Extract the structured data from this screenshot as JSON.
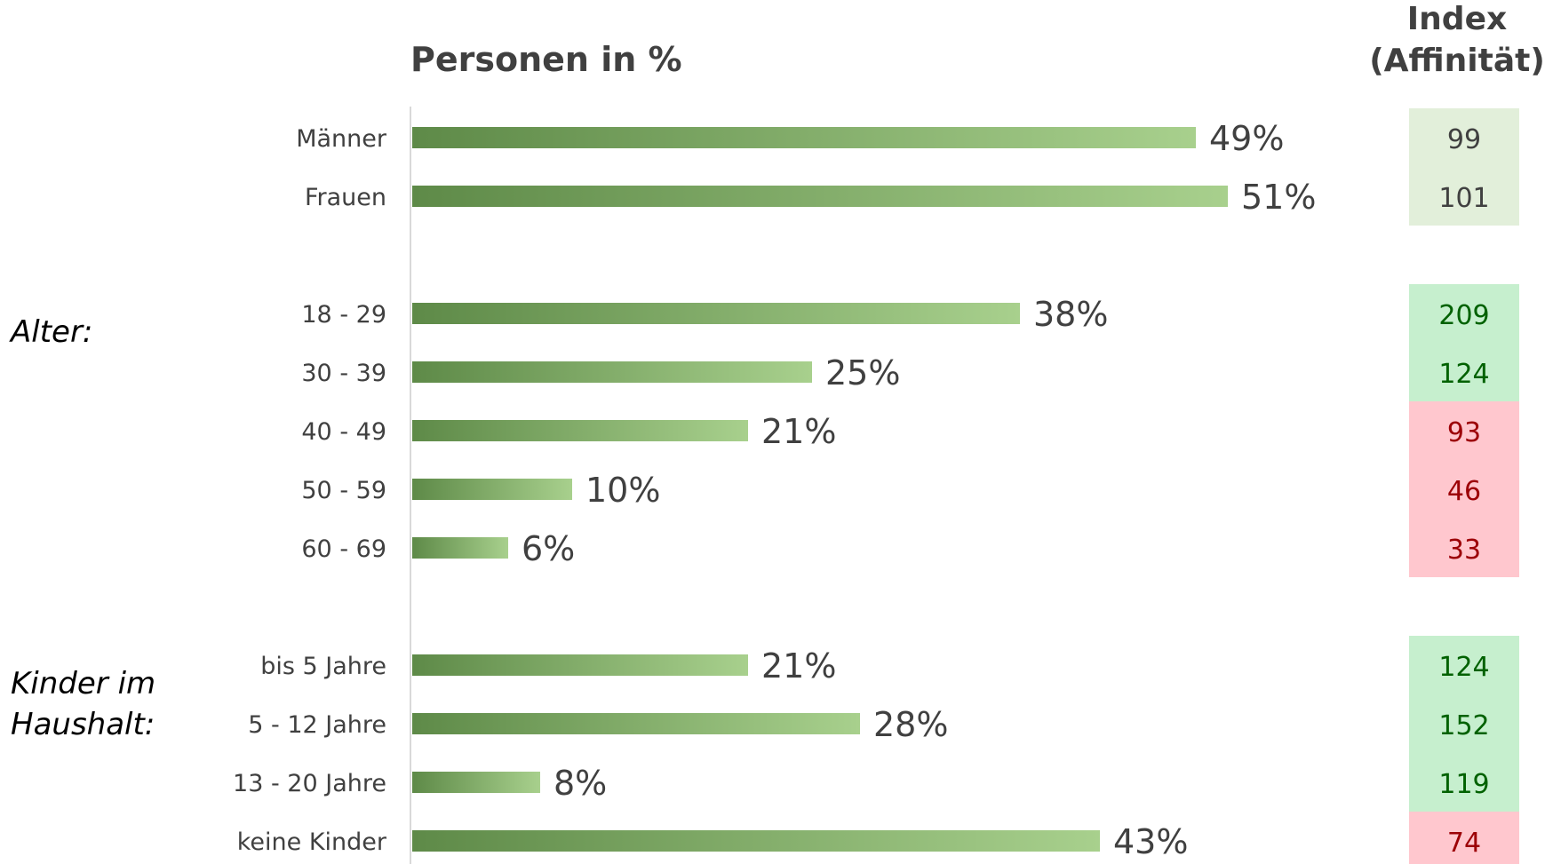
{
  "chart_data": {
    "type": "bar",
    "orientation": "horizontal",
    "title": "Personen in %",
    "index_header": [
      "Index",
      "(Affinität)"
    ],
    "xlim": [
      0,
      100
    ],
    "grid": false,
    "legend": "none",
    "bar_color_light": "#a8d08d",
    "bar_color_dark": "#5e8a48",
    "index_colors": {
      "neutral_bg": "#e2efda",
      "neutral_fg": "#404040",
      "positive_bg": "#c6efce",
      "positive_fg": "#006100",
      "negative_bg": "#ffc7ce",
      "negative_fg": "#9c0006"
    },
    "groups": [
      {
        "label": "",
        "rows": [
          {
            "category": "Männer",
            "value": 49,
            "value_label": "49%",
            "index": 99,
            "index_label": "99",
            "index_status": "neutral"
          },
          {
            "category": "Frauen",
            "value": 51,
            "value_label": "51%",
            "index": 101,
            "index_label": "101",
            "index_status": "neutral"
          }
        ]
      },
      {
        "label": "Alter:",
        "rows": [
          {
            "category": "18 - 29",
            "value": 38,
            "value_label": "38%",
            "index": 209,
            "index_label": "209",
            "index_status": "positive"
          },
          {
            "category": "30 - 39",
            "value": 25,
            "value_label": "25%",
            "index": 124,
            "index_label": "124",
            "index_status": "positive"
          },
          {
            "category": "40 - 49",
            "value": 21,
            "value_label": "21%",
            "index": 93,
            "index_label": "93",
            "index_status": "negative"
          },
          {
            "category": "50 - 59",
            "value": 10,
            "value_label": "10%",
            "index": 46,
            "index_label": "46",
            "index_status": "negative"
          },
          {
            "category": "60 - 69",
            "value": 6,
            "value_label": "6%",
            "index": 33,
            "index_label": "33",
            "index_status": "negative"
          }
        ]
      },
      {
        "label": "Kinder im Haushalt:",
        "label_lines": [
          "Kinder im",
          "Haushalt:"
        ],
        "rows": [
          {
            "category": "bis 5 Jahre",
            "value": 21,
            "value_label": "21%",
            "index": 124,
            "index_label": "124",
            "index_status": "positive"
          },
          {
            "category": "5 - 12 Jahre",
            "value": 28,
            "value_label": "28%",
            "index": 152,
            "index_label": "152",
            "index_status": "positive"
          },
          {
            "category": "13 - 20 Jahre",
            "value": 8,
            "value_label": "8%",
            "index": 119,
            "index_label": "119",
            "index_status": "positive"
          },
          {
            "category": "keine Kinder",
            "value": 43,
            "value_label": "43%",
            "index": 74,
            "index_label": "74",
            "index_status": "negative"
          }
        ]
      }
    ]
  }
}
